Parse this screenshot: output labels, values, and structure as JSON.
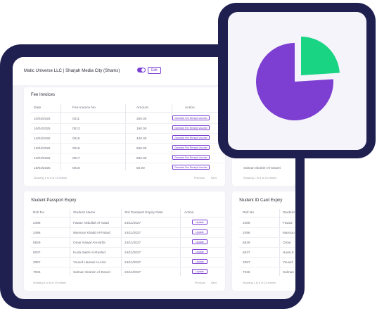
{
  "topbar": {
    "company": "Matic Universe LLC | Sharjah Media City (Shams)",
    "edit_label": "Edit"
  },
  "fee_invoices": {
    "title": "Fee Invoices",
    "columns": [
      "Date",
      "Fee Invoice No",
      "Amount",
      "Action"
    ],
    "rows": [
      {
        "date": "10/04/2025",
        "no": "0011",
        "amount": "250.00",
        "action": "Generate Fee Receipt Voucher"
      },
      {
        "date": "10/04/2025",
        "no": "0013",
        "amount": "190.00",
        "action": "Generate Fee Receipt Voucher"
      },
      {
        "date": "12/04/2025",
        "no": "0015",
        "amount": "430.00",
        "action": "Generate Fee Receipt Voucher"
      },
      {
        "date": "13/04/2025",
        "no": "0016",
        "amount": "560.00",
        "action": "Generate Fee Receipt Voucher"
      },
      {
        "date": "13/04/2025",
        "no": "0017",
        "amount": "850.00",
        "action": "Generate Fee Receipt Voucher"
      },
      {
        "date": "15/04/2025",
        "no": "0018",
        "amount": "55.00",
        "action": "Generate Fee Receipt Voucher"
      }
    ],
    "footer": "Showing 1 to 6 of 13 entries",
    "previous": "Previous",
    "next": "Next"
  },
  "behind_card": {
    "name": "Salman Ibrahim Al-Daseri",
    "footer": "Showing 1 to 6 of 13 entries"
  },
  "passport": {
    "title": "Student Passport Expiry",
    "columns": [
      "Roll No",
      "Student Name",
      "Std Passport Expiry Date",
      "Action"
    ],
    "rows": [
      {
        "roll": "2486",
        "name": "Fawaz Abdullah Al-Saad",
        "date": "24/11/2027",
        "action": "Update"
      },
      {
        "roll": "2496",
        "name": "Mansour Khalid Al-Fahad",
        "date": "24/11/2027",
        "action": "Update"
      },
      {
        "roll": "6829",
        "name": "Omar Nawaf Al-Harthi",
        "date": "24/11/2027",
        "action": "Update"
      },
      {
        "roll": "6037",
        "name": "Huda Saleh Al-Rashid",
        "date": "24/11/2027",
        "action": "Update"
      },
      {
        "roll": "2057",
        "name": "Yousef Hamad Al-Amri",
        "date": "24/11/2027",
        "action": "Update"
      },
      {
        "roll": "7026",
        "name": "Salman Ibrahim Al-Daseri",
        "date": "24/11/2027",
        "action": "Update"
      }
    ],
    "footer": "Showing 1 to 6 of 13 entries",
    "previous": "Previous",
    "next": "Next"
  },
  "idcard": {
    "title": "Student ID Card Expiry",
    "columns": [
      "Roll No",
      "Student"
    ],
    "rows": [
      {
        "roll": "2486",
        "name": "Fawaz"
      },
      {
        "roll": "2496",
        "name": "Mansou"
      },
      {
        "roll": "6829",
        "name": "Omar"
      },
      {
        "roll": "6037",
        "name": "Huda S"
      },
      {
        "roll": "2057",
        "name": "Yousef"
      },
      {
        "roll": "7026",
        "name": "Salman"
      }
    ],
    "footer": "Showing 1 to 6 of 13 entries"
  },
  "pie": {
    "slices": [
      {
        "label": "purple",
        "fraction": 0.76,
        "color": "#7c3fd1"
      },
      {
        "label": "green",
        "fraction": 0.24,
        "color": "#19d483"
      }
    ]
  },
  "colors": {
    "frame": "#1f2050",
    "accent": "#7b3fd4"
  }
}
